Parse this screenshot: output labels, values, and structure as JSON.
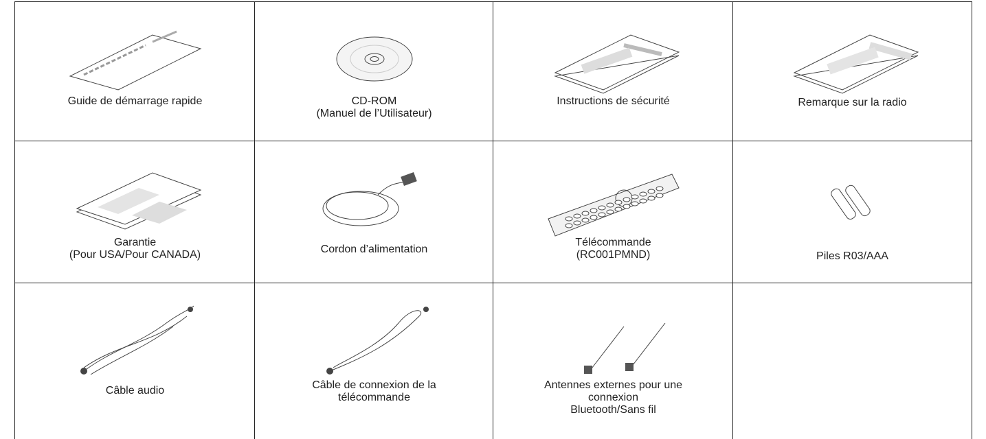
{
  "items": [
    {
      "lines": [
        "Guide de démarrage rapide"
      ]
    },
    {
      "lines": [
        "CD-ROM",
        "(Manuel de l’Utilisateur)"
      ]
    },
    {
      "lines": [
        "Instructions de sécurité"
      ]
    },
    {
      "lines": [
        "Remarque sur la radio"
      ]
    },
    {
      "lines": [
        "Garantie",
        "(Pour USA/Pour CANADA)"
      ]
    },
    {
      "lines": [
        "Cordon d’alimentation"
      ]
    },
    {
      "lines": [
        "Télécommande",
        "(RC001PMND)"
      ]
    },
    {
      "lines": [
        "Piles R03/AAA"
      ]
    },
    {
      "lines": [
        "Câble audio"
      ]
    },
    {
      "lines": [
        "Câble de connexion de la",
        "télécommande"
      ]
    },
    {
      "lines": [
        "Antennes externes pour une",
        "connexion",
        "Bluetooth/Sans fil"
      ]
    }
  ]
}
